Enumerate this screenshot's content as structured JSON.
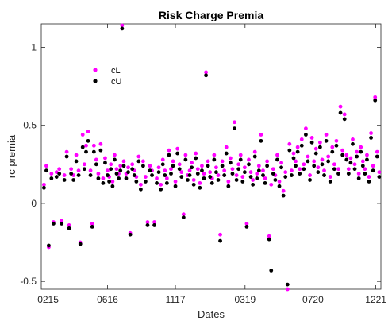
{
  "chart_data": {
    "type": "scatter",
    "title": "Risk Charge Premia",
    "xlabel": "Dates",
    "ylabel": "rc premia",
    "ylim": [
      -0.55,
      1.15
    ],
    "yticks": [
      -0.5,
      0,
      0.5,
      1
    ],
    "ytick_labels": [
      "-0.5",
      "0",
      "0.5",
      "1"
    ],
    "xlim": [
      0,
      1000
    ],
    "xticks": [
      20,
      195,
      395,
      600,
      800,
      985
    ],
    "xtick_labels": [
      "0215",
      "0616",
      "1117",
      "0319",
      "0720",
      "1221"
    ],
    "legend_position": "upper-left",
    "grid": false,
    "series": [
      {
        "name": "cL",
        "color": "#ff00ff",
        "points": [
          [
            8,
            0.12
          ],
          [
            15,
            0.24
          ],
          [
            22,
            -0.28
          ],
          [
            30,
            0.19
          ],
          [
            36,
            -0.12
          ],
          [
            45,
            0.2
          ],
          [
            53,
            0.22
          ],
          [
            60,
            -0.11
          ],
          [
            68,
            0.18
          ],
          [
            75,
            0.33
          ],
          [
            82,
            -0.14
          ],
          [
            88,
            0.22
          ],
          [
            95,
            0.18
          ],
          [
            103,
            0.31
          ],
          [
            110,
            0.21
          ],
          [
            115,
            -0.25
          ],
          [
            122,
            0.44
          ],
          [
            127,
            0.25
          ],
          [
            132,
            0.37
          ],
          [
            138,
            0.46
          ],
          [
            145,
            0.21
          ],
          [
            150,
            -0.13
          ],
          [
            155,
            0.37
          ],
          [
            162,
            0.28
          ],
          [
            168,
            0.19
          ],
          [
            175,
            0.38
          ],
          [
            182,
            0.16
          ],
          [
            188,
            0.29
          ],
          [
            195,
            0.21
          ],
          [
            200,
            0.17
          ],
          [
            205,
            0.25
          ],
          [
            210,
            0.14
          ],
          [
            216,
            0.31
          ],
          [
            222,
            0.22
          ],
          [
            228,
            0.19
          ],
          [
            233,
            0.24
          ],
          [
            238,
            1.14
          ],
          [
            243,
            0.27
          ],
          [
            250,
            0.19
          ],
          [
            256,
            0.23
          ],
          [
            262,
            -0.19
          ],
          [
            268,
            0.25
          ],
          [
            274,
            0.21
          ],
          [
            280,
            0.17
          ],
          [
            287,
            0.3
          ],
          [
            293,
            0.12
          ],
          [
            300,
            0.27
          ],
          [
            307,
            0.17
          ],
          [
            313,
            -0.12
          ],
          [
            320,
            0.24
          ],
          [
            326,
            0.21
          ],
          [
            333,
            -0.12
          ],
          [
            340,
            0.16
          ],
          [
            346,
            0.23
          ],
          [
            352,
            0.12
          ],
          [
            358,
            0.28
          ],
          [
            364,
            0.21
          ],
          [
            370,
            0.16
          ],
          [
            376,
            0.34
          ],
          [
            382,
            0.22
          ],
          [
            388,
            0.27
          ],
          [
            395,
            0.14
          ],
          [
            401,
            0.35
          ],
          [
            407,
            0.25
          ],
          [
            413,
            0.2
          ],
          [
            419,
            -0.07
          ],
          [
            425,
            0.31
          ],
          [
            431,
            0.18
          ],
          [
            437,
            0.21
          ],
          [
            443,
            0.26
          ],
          [
            449,
            0.15
          ],
          [
            455,
            0.32
          ],
          [
            461,
            0.22
          ],
          [
            467,
            0.13
          ],
          [
            473,
            0.24
          ],
          [
            479,
            0.19
          ],
          [
            485,
            0.84
          ],
          [
            491,
            0.27
          ],
          [
            497,
            0.2
          ],
          [
            503,
            0.16
          ],
          [
            509,
            0.31
          ],
          [
            515,
            0.23
          ],
          [
            521,
            0.18
          ],
          [
            527,
            -0.2
          ],
          [
            533,
            0.27
          ],
          [
            539,
            0.21
          ],
          [
            545,
            0.36
          ],
          [
            551,
            0.14
          ],
          [
            557,
            0.29
          ],
          [
            563,
            0.22
          ],
          [
            569,
            0.52
          ],
          [
            575,
            0.18
          ],
          [
            581,
            0.25
          ],
          [
            587,
            0.31
          ],
          [
            593,
            0.17
          ],
          [
            599,
            0.23
          ],
          [
            605,
            -0.13
          ],
          [
            611,
            0.28
          ],
          [
            617,
            0.2
          ],
          [
            623,
            0.15
          ],
          [
            629,
            0.33
          ],
          [
            635,
            0.19
          ],
          [
            641,
            0.24
          ],
          [
            647,
            0.44
          ],
          [
            653,
            0.21
          ],
          [
            659,
            0.16
          ],
          [
            665,
            0.27
          ],
          [
            671,
            -0.21
          ],
          [
            677,
            0.12
          ],
          [
            683,
            0.22
          ],
          [
            689,
            0.18
          ],
          [
            695,
            0.31
          ],
          [
            701,
            0.14
          ],
          [
            707,
            0.26
          ],
          [
            713,
            0.08
          ],
          [
            719,
            0.2
          ],
          [
            725,
            -0.55
          ],
          [
            731,
            0.38
          ],
          [
            737,
            0.21
          ],
          [
            743,
            0.32
          ],
          [
            749,
            0.27
          ],
          [
            755,
            0.36
          ],
          [
            761,
            0.22
          ],
          [
            767,
            0.41
          ],
          [
            773,
            0.25
          ],
          [
            779,
            0.48
          ],
          [
            785,
            0.3
          ],
          [
            791,
            0.18
          ],
          [
            797,
            0.42
          ],
          [
            803,
            0.27
          ],
          [
            809,
            0.35
          ],
          [
            815,
            0.23
          ],
          [
            821,
            0.39
          ],
          [
            827,
            0.28
          ],
          [
            833,
            0.21
          ],
          [
            839,
            0.44
          ],
          [
            845,
            0.3
          ],
          [
            851,
            0.17
          ],
          [
            857,
            0.36
          ],
          [
            863,
            0.25
          ],
          [
            869,
            0.4
          ],
          [
            875,
            0.22
          ],
          [
            881,
            0.62
          ],
          [
            887,
            0.34
          ],
          [
            893,
            0.57
          ],
          [
            899,
            0.31
          ],
          [
            905,
            0.22
          ],
          [
            911,
            0.29
          ],
          [
            917,
            0.41
          ],
          [
            923,
            0.25
          ],
          [
            929,
            0.33
          ],
          [
            935,
            0.19
          ],
          [
            941,
            0.36
          ],
          [
            947,
            0.27
          ],
          [
            953,
            0.22
          ],
          [
            959,
            0.31
          ],
          [
            965,
            0.17
          ],
          [
            971,
            0.45
          ],
          [
            977,
            0.24
          ],
          [
            983,
            0.68
          ],
          [
            989,
            0.33
          ],
          [
            995,
            0.2
          ]
        ]
      },
      {
        "name": "cU",
        "color": "#000000",
        "points": [
          [
            8,
            0.1
          ],
          [
            15,
            0.21
          ],
          [
            22,
            -0.27
          ],
          [
            30,
            0.16
          ],
          [
            36,
            -0.13
          ],
          [
            45,
            0.17
          ],
          [
            53,
            0.19
          ],
          [
            60,
            -0.13
          ],
          [
            68,
            0.15
          ],
          [
            75,
            0.3
          ],
          [
            82,
            -0.16
          ],
          [
            88,
            0.19
          ],
          [
            95,
            0.15
          ],
          [
            103,
            0.27
          ],
          [
            110,
            0.18
          ],
          [
            115,
            -0.26
          ],
          [
            122,
            0.36
          ],
          [
            127,
            0.22
          ],
          [
            132,
            0.33
          ],
          [
            138,
            0.4
          ],
          [
            145,
            0.18
          ],
          [
            150,
            -0.15
          ],
          [
            155,
            0.33
          ],
          [
            162,
            0.25
          ],
          [
            168,
            0.16
          ],
          [
            175,
            0.34
          ],
          [
            182,
            0.13
          ],
          [
            188,
            0.26
          ],
          [
            195,
            0.18
          ],
          [
            200,
            0.14
          ],
          [
            205,
            0.22
          ],
          [
            210,
            0.11
          ],
          [
            216,
            0.28
          ],
          [
            222,
            0.19
          ],
          [
            228,
            0.16
          ],
          [
            233,
            0.21
          ],
          [
            238,
            1.12
          ],
          [
            243,
            0.24
          ],
          [
            250,
            0.16
          ],
          [
            256,
            0.2
          ],
          [
            262,
            -0.2
          ],
          [
            268,
            0.22
          ],
          [
            274,
            0.18
          ],
          [
            280,
            0.14
          ],
          [
            287,
            0.27
          ],
          [
            293,
            0.09
          ],
          [
            300,
            0.24
          ],
          [
            307,
            0.14
          ],
          [
            313,
            -0.14
          ],
          [
            320,
            0.21
          ],
          [
            326,
            0.18
          ],
          [
            333,
            -0.14
          ],
          [
            340,
            0.13
          ],
          [
            346,
            0.2
          ],
          [
            352,
            0.09
          ],
          [
            358,
            0.25
          ],
          [
            364,
            0.18
          ],
          [
            370,
            0.13
          ],
          [
            376,
            0.31
          ],
          [
            382,
            0.19
          ],
          [
            388,
            0.24
          ],
          [
            395,
            0.11
          ],
          [
            401,
            0.32
          ],
          [
            407,
            0.22
          ],
          [
            413,
            0.17
          ],
          [
            419,
            -0.09
          ],
          [
            425,
            0.28
          ],
          [
            431,
            0.15
          ],
          [
            437,
            0.18
          ],
          [
            443,
            0.23
          ],
          [
            449,
            0.12
          ],
          [
            455,
            0.29
          ],
          [
            461,
            0.19
          ],
          [
            467,
            0.1
          ],
          [
            473,
            0.21
          ],
          [
            479,
            0.16
          ],
          [
            485,
            0.82
          ],
          [
            491,
            0.24
          ],
          [
            497,
            0.17
          ],
          [
            503,
            0.13
          ],
          [
            509,
            0.28
          ],
          [
            515,
            0.2
          ],
          [
            521,
            0.15
          ],
          [
            527,
            -0.24
          ],
          [
            533,
            0.24
          ],
          [
            539,
            0.18
          ],
          [
            545,
            0.32
          ],
          [
            551,
            0.11
          ],
          [
            557,
            0.26
          ],
          [
            563,
            0.19
          ],
          [
            569,
            0.48
          ],
          [
            575,
            0.15
          ],
          [
            581,
            0.22
          ],
          [
            587,
            0.28
          ],
          [
            593,
            0.14
          ],
          [
            599,
            0.2
          ],
          [
            605,
            -0.15
          ],
          [
            611,
            0.25
          ],
          [
            617,
            0.17
          ],
          [
            623,
            0.12
          ],
          [
            629,
            0.3
          ],
          [
            635,
            0.16
          ],
          [
            641,
            0.21
          ],
          [
            647,
            0.4
          ],
          [
            653,
            0.18
          ],
          [
            659,
            0.13
          ],
          [
            665,
            0.24
          ],
          [
            671,
            -0.23
          ],
          [
            677,
            -0.43
          ],
          [
            683,
            0.19
          ],
          [
            689,
            0.15
          ],
          [
            695,
            0.28
          ],
          [
            701,
            0.11
          ],
          [
            707,
            0.23
          ],
          [
            713,
            0.05
          ],
          [
            719,
            0.17
          ],
          [
            725,
            -0.52
          ],
          [
            731,
            0.34
          ],
          [
            737,
            0.18
          ],
          [
            743,
            0.29
          ],
          [
            749,
            0.24
          ],
          [
            755,
            0.33
          ],
          [
            761,
            0.19
          ],
          [
            767,
            0.37
          ],
          [
            773,
            0.22
          ],
          [
            779,
            0.44
          ],
          [
            785,
            0.27
          ],
          [
            791,
            0.15
          ],
          [
            797,
            0.39
          ],
          [
            803,
            0.24
          ],
          [
            809,
            0.32
          ],
          [
            815,
            0.2
          ],
          [
            821,
            0.36
          ],
          [
            827,
            0.25
          ],
          [
            833,
            0.18
          ],
          [
            839,
            0.4
          ],
          [
            845,
            0.27
          ],
          [
            851,
            0.14
          ],
          [
            857,
            0.33
          ],
          [
            863,
            0.22
          ],
          [
            869,
            0.37
          ],
          [
            875,
            0.19
          ],
          [
            881,
            0.58
          ],
          [
            887,
            0.31
          ],
          [
            893,
            0.54
          ],
          [
            899,
            0.28
          ],
          [
            905,
            0.19
          ],
          [
            911,
            0.26
          ],
          [
            917,
            0.38
          ],
          [
            923,
            0.22
          ],
          [
            929,
            0.3
          ],
          [
            935,
            0.16
          ],
          [
            941,
            0.33
          ],
          [
            947,
            0.24
          ],
          [
            953,
            0.19
          ],
          [
            959,
            0.28
          ],
          [
            965,
            0.14
          ],
          [
            971,
            0.42
          ],
          [
            977,
            0.21
          ],
          [
            983,
            0.66
          ],
          [
            989,
            0.3
          ],
          [
            995,
            0.17
          ]
        ]
      }
    ]
  }
}
